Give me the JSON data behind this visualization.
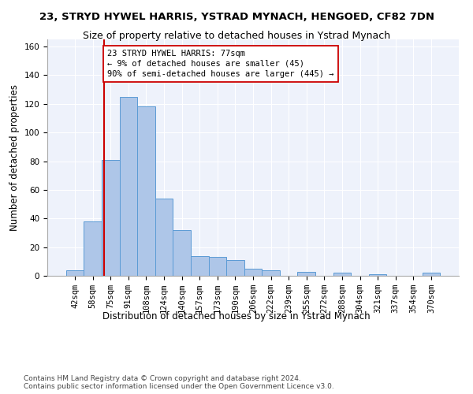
{
  "title": "23, STRYD HYWEL HARRIS, YSTRAD MYNACH, HENGOED, CF82 7DN",
  "subtitle": "Size of property relative to detached houses in Ystrad Mynach",
  "xlabel": "Distribution of detached houses by size in Ystrad Mynach",
  "ylabel": "Number of detached properties",
  "footer_line1": "Contains HM Land Registry data © Crown copyright and database right 2024.",
  "footer_line2": "Contains public sector information licensed under the Open Government Licence v3.0.",
  "categories": [
    "42sqm",
    "58sqm",
    "75sqm",
    "91sqm",
    "108sqm",
    "124sqm",
    "140sqm",
    "157sqm",
    "173sqm",
    "190sqm",
    "206sqm",
    "222sqm",
    "239sqm",
    "255sqm",
    "272sqm",
    "288sqm",
    "304sqm",
    "321sqm",
    "337sqm",
    "354sqm",
    "370sqm"
  ],
  "values": [
    4,
    38,
    81,
    125,
    118,
    54,
    32,
    14,
    13,
    11,
    5,
    4,
    0,
    3,
    0,
    2,
    0,
    1,
    0,
    0,
    2
  ],
  "bar_color": "#aec6e8",
  "bar_edge_color": "#5b9bd5",
  "annotation_line1": "23 STRYD HYWEL HARRIS: 77sqm",
  "annotation_line2": "← 9% of detached houses are smaller (45)",
  "annotation_line3": "90% of semi-detached houses are larger (445) →",
  "annotation_box_color": "#ffffff",
  "annotation_box_edge_color": "#cc0000",
  "vline_color": "#cc0000",
  "ylim": [
    0,
    165
  ],
  "yticks": [
    0,
    20,
    40,
    60,
    80,
    100,
    120,
    140,
    160
  ],
  "title_fontsize": 9.5,
  "subtitle_fontsize": 9,
  "xlabel_fontsize": 8.5,
  "ylabel_fontsize": 8.5,
  "tick_fontsize": 7.5,
  "annotation_fontsize": 7.5,
  "footer_fontsize": 6.5,
  "bg_color": "#eef2fb",
  "grid_color": "#ffffff",
  "vline_x_index": 1.625
}
